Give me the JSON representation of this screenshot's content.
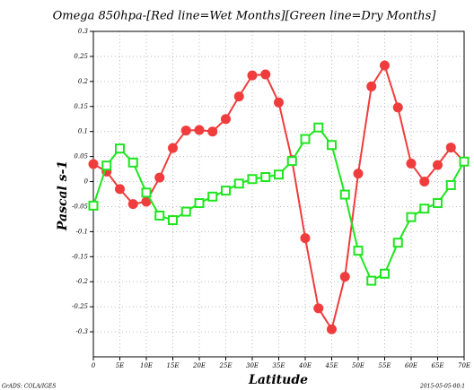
{
  "chart_data": {
    "type": "line",
    "title": "Omega 850hpa-[Red line=Wet Months][Green line=Dry Months]",
    "ylabel": "Pascal s-1",
    "xlabel": "Latitude",
    "footer_left": "GrADS: COLA/IGES",
    "footer_right": "2015-05-05-00:1",
    "x": [
      0,
      2.5,
      5,
      7.5,
      10,
      12.5,
      15,
      17.5,
      20,
      22.5,
      25,
      27.5,
      30,
      32.5,
      35,
      37.5,
      40,
      42.5,
      45,
      47.5,
      50,
      52.5,
      55,
      57.5,
      60,
      62.5,
      65,
      67.5,
      70
    ],
    "series": [
      {
        "name": "Wet Months",
        "color": "#f03c3c",
        "marker": "circle",
        "values": [
          0.035,
          0.02,
          -0.015,
          -0.045,
          -0.04,
          0.008,
          0.067,
          0.102,
          0.103,
          0.1,
          0.125,
          0.17,
          0.212,
          0.214,
          0.158,
          0.043,
          -0.113,
          -0.253,
          -0.295,
          -0.19,
          0.016,
          0.19,
          0.232,
          0.148,
          0.036,
          0,
          0.033,
          0.068,
          0.04
        ]
      },
      {
        "name": "Dry Months",
        "color": "#1ee61e",
        "marker": "square",
        "values": [
          -0.048,
          0.032,
          0.066,
          0.038,
          -0.022,
          -0.068,
          -0.077,
          -0.06,
          -0.043,
          -0.03,
          -0.018,
          -0.004,
          0.005,
          0.009,
          0.014,
          0.041,
          0.085,
          0.108,
          0.073,
          -0.026,
          -0.138,
          -0.198,
          -0.184,
          -0.122,
          -0.071,
          -0.054,
          -0.043,
          -0.007,
          0.04
        ]
      }
    ],
    "xlim": [
      0,
      70
    ],
    "xticks": [
      0,
      {
        "value": 5,
        "label": "5E"
      },
      {
        "value": 10,
        "label": "10E"
      },
      {
        "value": 15,
        "label": "15E"
      },
      {
        "value": 20,
        "label": "20E"
      },
      {
        "value": 25,
        "label": "25E"
      },
      {
        "value": 30,
        "label": "30E"
      },
      {
        "value": 35,
        "label": "35E"
      },
      {
        "value": 40,
        "label": "40E"
      },
      {
        "value": 45,
        "label": "45E"
      },
      {
        "value": 50,
        "label": "50E"
      },
      {
        "value": 55,
        "label": "55E"
      },
      {
        "value": 60,
        "label": "60E"
      },
      {
        "value": 65,
        "label": "65E"
      },
      {
        "value": 70,
        "label": "70E"
      }
    ],
    "ylim": [
      -0.35,
      0.3
    ],
    "yticks": [
      -0.3,
      -0.25,
      -0.2,
      -0.15,
      -0.1,
      -0.05,
      0,
      0.05,
      0.1,
      0.15,
      0.2,
      0.25,
      0.3
    ],
    "grid": true
  }
}
